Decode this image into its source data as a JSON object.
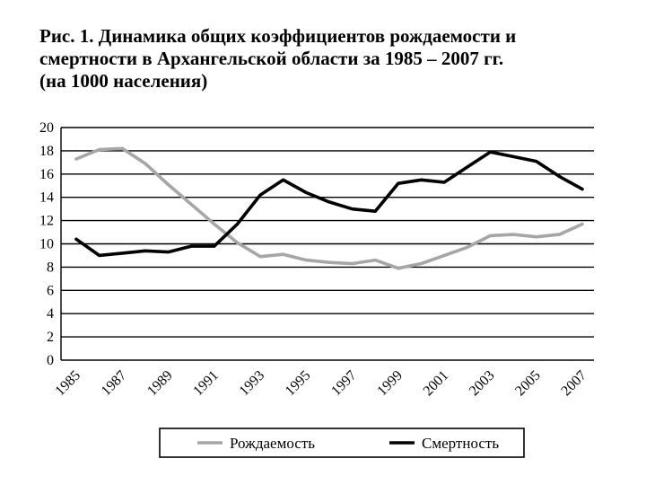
{
  "title_lines": [
    "Рис. 1. Динамика общих коэффициентов рождаемости и",
    "смертности в Архангельской области за 1985 – 2007 гг.",
    "(на 1000 населения)"
  ],
  "chart_data": {
    "type": "line",
    "title": "Рис. 1. Динамика общих коэффициентов рождаемости и смертности в Архангельской области за 1985 – 2007 гг. (на 1000 населения)",
    "x": [
      1985,
      1986,
      1987,
      1988,
      1989,
      1990,
      1991,
      1992,
      1993,
      1994,
      1995,
      1996,
      1997,
      1998,
      1999,
      2000,
      2001,
      2002,
      2003,
      2004,
      2005,
      2006,
      2007
    ],
    "x_tick_labels": [
      "1985",
      "1987",
      "1989",
      "1991",
      "1993",
      "1995",
      "1997",
      "1999",
      "2001",
      "2003",
      "2005",
      "2007"
    ],
    "y_ticks": [
      0,
      2,
      4,
      6,
      8,
      10,
      12,
      14,
      16,
      18,
      20
    ],
    "ylim": [
      0,
      20
    ],
    "grid": "horizontal",
    "legend_position": "bottom",
    "series": [
      {
        "name": "Рождаемость",
        "color": "#a6a6a6",
        "values": [
          17.3,
          18.1,
          18.2,
          16.9,
          15.1,
          13.4,
          11.7,
          10.1,
          8.9,
          9.1,
          8.6,
          8.4,
          8.3,
          8.6,
          7.9,
          8.3,
          9.0,
          9.7,
          10.7,
          10.8,
          10.6,
          10.8,
          11.7
        ]
      },
      {
        "name": "Смертность",
        "color": "#000000",
        "values": [
          10.4,
          9.0,
          9.2,
          9.4,
          9.3,
          9.8,
          9.8,
          11.7,
          14.2,
          15.5,
          14.4,
          13.6,
          13.0,
          12.8,
          15.2,
          15.5,
          15.3,
          16.6,
          17.9,
          17.5,
          17.1,
          15.8,
          14.7
        ]
      }
    ]
  }
}
